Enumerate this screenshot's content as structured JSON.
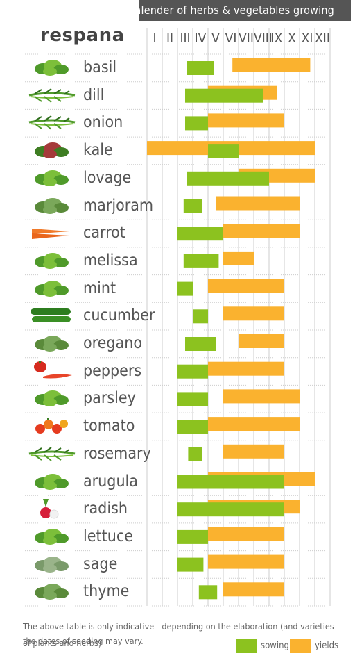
{
  "header": {
    "title": "Calender of herbs & vegetables growing"
  },
  "brand": {
    "name": "respana"
  },
  "colors": {
    "sowing": "#8cc21f",
    "yields": "#fab22f",
    "grid": "#cccccc",
    "header": "#555555"
  },
  "chart_data": {
    "type": "gantt",
    "title": "Calender of herbs & vegetables growing",
    "months": [
      "I",
      "II",
      "III",
      "IV",
      "V",
      "VI",
      "VII",
      "VIII",
      "IX",
      "X",
      "XI",
      "XII"
    ],
    "legend": {
      "sowing": "sowing",
      "yields": "yields"
    },
    "rows": [
      {
        "name": "basil",
        "icon": "basil-icon",
        "sowing": [
          3.6,
          5.4
        ],
        "yields": [
          6.6,
          11.7
        ]
      },
      {
        "name": "dill",
        "icon": "dill-icon",
        "sowing": [
          3.5,
          8.6
        ],
        "yields": [
          5.0,
          9.5
        ]
      },
      {
        "name": "onion",
        "icon": "onion-icon",
        "sowing": [
          3.5,
          5.0
        ],
        "yields": [
          5.0,
          10.0
        ]
      },
      {
        "name": "kale",
        "icon": "kale-icon",
        "sowing": [
          5.0,
          7.0
        ],
        "yields": [
          1.0,
          12.0
        ]
      },
      {
        "name": "lovage",
        "icon": "lovage-icon",
        "sowing": [
          3.6,
          9.0
        ],
        "yields": [
          7.0,
          12.0
        ]
      },
      {
        "name": "marjoram",
        "icon": "marjoram-icon",
        "sowing": [
          3.4,
          4.6
        ],
        "yields": [
          5.5,
          11.0
        ]
      },
      {
        "name": "carrot",
        "icon": "carrot-icon",
        "sowing": [
          3.0,
          6.0
        ],
        "yields": [
          6.0,
          11.0
        ]
      },
      {
        "name": "melissa",
        "icon": "melissa-icon",
        "sowing": [
          3.4,
          5.7
        ],
        "yields": [
          6.0,
          8.0
        ]
      },
      {
        "name": "mint",
        "icon": "mint-icon",
        "sowing": [
          3.0,
          4.0
        ],
        "yields": [
          5.0,
          10.0
        ]
      },
      {
        "name": "cucumber",
        "icon": "cucumber-icon",
        "sowing": [
          4.0,
          5.0
        ],
        "yields": [
          6.0,
          10.0
        ]
      },
      {
        "name": "oregano",
        "icon": "oregano-icon",
        "sowing": [
          3.5,
          5.5
        ],
        "yields": [
          7.0,
          10.0
        ]
      },
      {
        "name": "peppers",
        "icon": "peppers-icon",
        "sowing": [
          3.0,
          5.0
        ],
        "yields": [
          5.0,
          10.0
        ]
      },
      {
        "name": "parsley",
        "icon": "parsley-icon",
        "sowing": [
          3.0,
          5.0
        ],
        "yields": [
          6.0,
          11.0
        ]
      },
      {
        "name": "tomato",
        "icon": "tomato-icon",
        "sowing": [
          3.0,
          5.0
        ],
        "yields": [
          5.0,
          11.0
        ]
      },
      {
        "name": "rosemary",
        "icon": "rosemary-icon",
        "sowing": [
          3.7,
          4.6
        ],
        "yields": [
          6.0,
          10.0
        ]
      },
      {
        "name": "arugula",
        "icon": "arugula-icon",
        "sowing": [
          3.0,
          10.0
        ],
        "yields": [
          5.0,
          12.0
        ]
      },
      {
        "name": "radish",
        "icon": "radish-icon",
        "sowing": [
          3.0,
          10.0
        ],
        "yields": [
          5.0,
          11.0
        ]
      },
      {
        "name": "lettuce",
        "icon": "lettuce-icon",
        "sowing": [
          3.0,
          5.0
        ],
        "yields": [
          5.0,
          10.0
        ]
      },
      {
        "name": "sage",
        "icon": "sage-icon",
        "sowing": [
          3.0,
          4.7
        ],
        "yields": [
          5.0,
          10.0
        ]
      },
      {
        "name": "thyme",
        "icon": "thyme-icon",
        "sowing": [
          4.4,
          5.6
        ],
        "yields": [
          6.0,
          10.0
        ]
      }
    ]
  },
  "footer": {
    "line1": "The above table is only indicative - depending on the elaboration (and varieties of plants and herbs)",
    "line2": "the dates of seeding may vary."
  }
}
